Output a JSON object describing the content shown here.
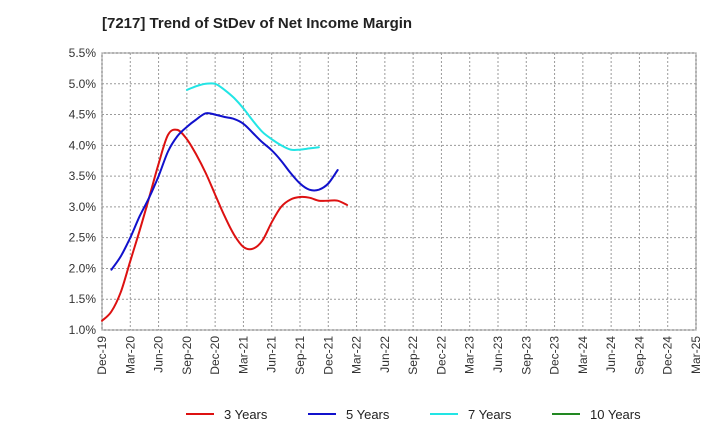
{
  "chart_data": {
    "type": "line",
    "title": "[7217]  Trend of StDev of Net Income Margin",
    "xlabel": "",
    "ylabel": "",
    "x_ticks": [
      "Dec-19",
      "Mar-20",
      "Jun-20",
      "Sep-20",
      "Dec-20",
      "Mar-21",
      "Jun-21",
      "Sep-21",
      "Dec-21",
      "Mar-22",
      "Jun-22",
      "Sep-22",
      "Dec-22",
      "Mar-23",
      "Jun-23",
      "Sep-23",
      "Dec-23",
      "Mar-24",
      "Jun-24",
      "Sep-24",
      "Dec-24",
      "Mar-25"
    ],
    "y_ticks": [
      "1.0%",
      "1.5%",
      "2.0%",
      "2.5%",
      "3.0%",
      "3.5%",
      "4.0%",
      "4.5%",
      "5.0%",
      "5.5%"
    ],
    "ylim": [
      1.0,
      5.5
    ],
    "grid": true,
    "legend_position": "bottom",
    "series": [
      {
        "name": "3 Years",
        "color": "#dd1111",
        "start_index": 0,
        "values": [
          1.15,
          1.3,
          1.62,
          2.12,
          2.62,
          3.15,
          3.7,
          4.17,
          4.25,
          4.1,
          3.85,
          3.55,
          3.2,
          2.85,
          2.55,
          2.35,
          2.32,
          2.45,
          2.75,
          3.0,
          3.12,
          3.16,
          3.15,
          3.1,
          3.1,
          3.1,
          3.03
        ]
      },
      {
        "name": "5 Years",
        "color": "#1111cc",
        "start_index": 1,
        "values": [
          1.98,
          2.2,
          2.5,
          2.85,
          3.15,
          3.5,
          3.9,
          4.15,
          4.3,
          4.42,
          4.52,
          4.5,
          4.46,
          4.43,
          4.35,
          4.2,
          4.05,
          3.92,
          3.75,
          3.55,
          3.38,
          3.28,
          3.28,
          3.38,
          3.6
        ]
      },
      {
        "name": "7 Years",
        "color": "#22e5e5",
        "start_index": 9,
        "values": [
          4.9,
          4.96,
          5.0,
          5.0,
          4.9,
          4.77,
          4.6,
          4.4,
          4.22,
          4.1,
          4.0,
          3.93,
          3.93,
          3.95,
          3.97
        ]
      },
      {
        "name": "10 Years",
        "color": "#228822",
        "start_index": 0,
        "values": []
      }
    ]
  }
}
